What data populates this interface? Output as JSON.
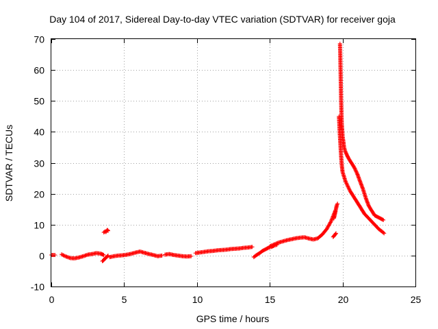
{
  "chart_data": {
    "type": "scatter",
    "title": "Day 104 of 2017, Sidereal Day-to-day VTEC variation (SDTVAR) for receiver goja",
    "xlabel": "GPS time / hours",
    "ylabel": "SDTVAR / TECUs",
    "xlim": [
      0,
      25
    ],
    "ylim": [
      -10,
      70
    ],
    "xticks": [
      0,
      5,
      10,
      15,
      20,
      25
    ],
    "yticks": [
      -10,
      0,
      10,
      20,
      30,
      40,
      50,
      60,
      70
    ],
    "grid": true,
    "marker": "+",
    "color": "#ff0000",
    "series": [
      {
        "name": "SDTVAR",
        "segments": [
          {
            "x": [
              0.0,
              0.25
            ],
            "y": [
              0.2,
              0.2
            ]
          },
          {
            "x": [
              0.7,
              1.0,
              1.3,
              1.6,
              1.9,
              2.2,
              2.5,
              2.8,
              3.1,
              3.4,
              3.6
            ],
            "y": [
              0.4,
              -0.3,
              -0.8,
              -0.9,
              -0.6,
              -0.2,
              0.3,
              0.5,
              0.8,
              0.6,
              0.2
            ]
          },
          {
            "x": [
              3.5,
              3.6,
              3.7,
              3.8,
              3.9
            ],
            "y": [
              -1.8,
              -1.5,
              -0.8,
              -0.5,
              0.0
            ]
          },
          {
            "x": [
              3.6,
              3.7,
              3.75,
              3.8,
              3.85,
              3.9
            ],
            "y": [
              7.5,
              7.8,
              7.6,
              8.0,
              8.3,
              8.0
            ]
          },
          {
            "x": [
              4.0,
              4.3,
              4.6,
              4.9,
              5.2,
              5.5,
              5.8,
              6.1,
              6.4,
              6.7,
              7.0,
              7.3,
              7.6
            ],
            "y": [
              -0.5,
              -0.2,
              0.0,
              0.1,
              0.3,
              0.6,
              1.0,
              1.3,
              0.9,
              0.5,
              0.2,
              -0.2,
              0.0
            ]
          },
          {
            "x": [
              7.8,
              8.1,
              8.4,
              8.7,
              9.0,
              9.3,
              9.6
            ],
            "y": [
              0.3,
              0.5,
              0.2,
              0.0,
              -0.2,
              -0.3,
              -0.2
            ]
          },
          {
            "x": [
              9.9,
              10.2,
              10.5,
              10.8,
              11.1,
              11.4,
              11.7,
              12.0,
              12.3,
              12.6,
              12.9,
              13.2,
              13.5,
              13.8
            ],
            "y": [
              0.8,
              1.0,
              1.2,
              1.4,
              1.5,
              1.7,
              1.8,
              1.9,
              2.1,
              2.2,
              2.3,
              2.5,
              2.6,
              2.8
            ]
          },
          {
            "x": [
              13.9,
              14.1,
              14.3,
              14.5,
              14.7,
              14.9,
              15.1,
              15.3,
              15.5
            ],
            "y": [
              -0.5,
              0.2,
              0.8,
              1.5,
              2.0,
              2.5,
              2.8,
              3.2,
              3.5
            ]
          },
          {
            "x": [
              15.0,
              15.3,
              15.6,
              15.9,
              16.2,
              16.5,
              16.8,
              17.1,
              17.4,
              17.7,
              18.0,
              18.3,
              18.6,
              18.9,
              19.2,
              19.5
            ],
            "y": [
              3.0,
              3.6,
              4.2,
              4.6,
              5.0,
              5.3,
              5.6,
              5.8,
              5.9,
              5.5,
              5.2,
              5.6,
              6.8,
              8.5,
              11.0,
              14.5
            ]
          },
          {
            "x": [
              19.4,
              19.45,
              19.5,
              19.55,
              19.6,
              19.65
            ],
            "y": [
              12.0,
              13.0,
              14.0,
              15.2,
              16.2,
              16.8
            ]
          },
          {
            "x": [
              19.35,
              19.45,
              19.55
            ],
            "y": [
              6.0,
              6.6,
              7.2
            ]
          },
          {
            "x": [
              19.82,
              19.84,
              19.86,
              19.88,
              19.9,
              19.92,
              19.95,
              19.98,
              20.0,
              20.05,
              20.1,
              20.2,
              20.3,
              20.4,
              20.6,
              20.8,
              21.0,
              21.2,
              21.4,
              21.6,
              21.8,
              22.0,
              22.2,
              22.4,
              22.6,
              22.8
            ],
            "y": [
              68.5,
              65.0,
              60.0,
              55.0,
              50.0,
              46.0,
              42.0,
              40.0,
              38.5,
              37.0,
              35.0,
              33.5,
              32.5,
              31.5,
              30.0,
              28.5,
              26.5,
              24.0,
              21.5,
              18.5,
              16.0,
              14.5,
              13.0,
              12.5,
              12.0,
              11.5
            ]
          },
          {
            "x": [
              19.75,
              19.8,
              19.85,
              19.9,
              19.95,
              20.0,
              20.1,
              20.2,
              20.35,
              20.5,
              20.7,
              20.9,
              21.1,
              21.3,
              21.5,
              21.7,
              21.9,
              22.1,
              22.3,
              22.5,
              22.7,
              22.85
            ],
            "y": [
              45.0,
              40.0,
              36.0,
              32.0,
              29.0,
              27.0,
              25.5,
              24.0,
              22.5,
              21.0,
              19.5,
              18.0,
              16.5,
              15.0,
              13.5,
              12.5,
              11.5,
              10.5,
              9.5,
              8.5,
              7.8,
              7.2
            ]
          }
        ]
      }
    ]
  }
}
